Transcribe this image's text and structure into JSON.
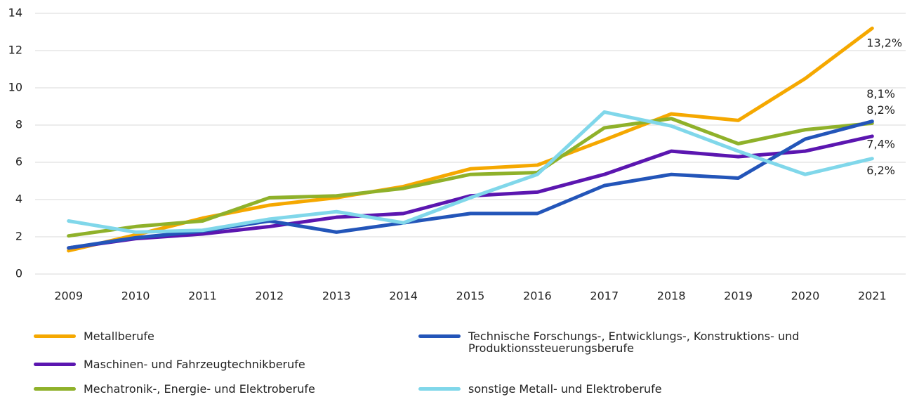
{
  "chart_data": {
    "type": "line",
    "categories": [
      "2009",
      "2010",
      "2011",
      "2012",
      "2013",
      "2014",
      "2015",
      "2016",
      "2017",
      "2018",
      "2019",
      "2020",
      "2021"
    ],
    "ylim": [
      0,
      14
    ],
    "yticks": [
      0,
      2,
      4,
      6,
      8,
      10,
      12,
      14
    ],
    "grid": true,
    "series": [
      {
        "name": "Metallberufe",
        "color": "#f5a800",
        "values": [
          1.25,
          2.1,
          3.0,
          3.7,
          4.1,
          4.7,
          5.65,
          5.85,
          7.2,
          8.6,
          8.25,
          10.5,
          13.2
        ],
        "value_labels": [
          null,
          null,
          null,
          null,
          null,
          null,
          null,
          null,
          null,
          null,
          null,
          null,
          "13,2%"
        ]
      },
      {
        "name": "Mechatronik-, Energie- und Elektroberufe",
        "color": "#8fb12a",
        "values": [
          2.05,
          2.55,
          2.85,
          4.1,
          4.2,
          4.6,
          5.35,
          5.45,
          7.85,
          8.35,
          7.0,
          7.75,
          8.1
        ],
        "value_labels": [
          null,
          null,
          null,
          null,
          null,
          null,
          null,
          null,
          null,
          null,
          null,
          null,
          "8,1%"
        ]
      },
      {
        "name": "Maschinen- und Fahrzeugtechnikberufe",
        "color": "#5b16b0",
        "values": [
          1.4,
          1.9,
          2.15,
          2.55,
          3.05,
          3.25,
          4.2,
          4.4,
          5.35,
          6.6,
          6.3,
          6.6,
          7.4
        ],
        "value_labels": [
          null,
          null,
          null,
          null,
          null,
          null,
          null,
          null,
          null,
          null,
          null,
          null,
          "7,4%"
        ]
      },
      {
        "name": "Technische Forschungs-, Entwicklungs-, Konstruktions- und Produktionssteuerungsberufe",
        "color": "#2355b9",
        "values": [
          1.4,
          1.95,
          2.3,
          2.85,
          2.25,
          2.75,
          3.25,
          3.25,
          4.75,
          5.35,
          5.15,
          7.25,
          8.2
        ],
        "value_labels": [
          null,
          null,
          null,
          null,
          null,
          null,
          null,
          null,
          null,
          null,
          null,
          null,
          "8,2%"
        ]
      },
      {
        "name": "sonstige Metall- und Elektroberufe",
        "color": "#80d7ea",
        "values": [
          2.85,
          2.25,
          2.35,
          2.95,
          3.35,
          2.75,
          4.1,
          5.35,
          8.7,
          7.95,
          6.6,
          5.35,
          6.2
        ],
        "value_labels": [
          null,
          null,
          null,
          null,
          null,
          null,
          null,
          null,
          null,
          null,
          null,
          null,
          "6,2%"
        ]
      }
    ]
  }
}
